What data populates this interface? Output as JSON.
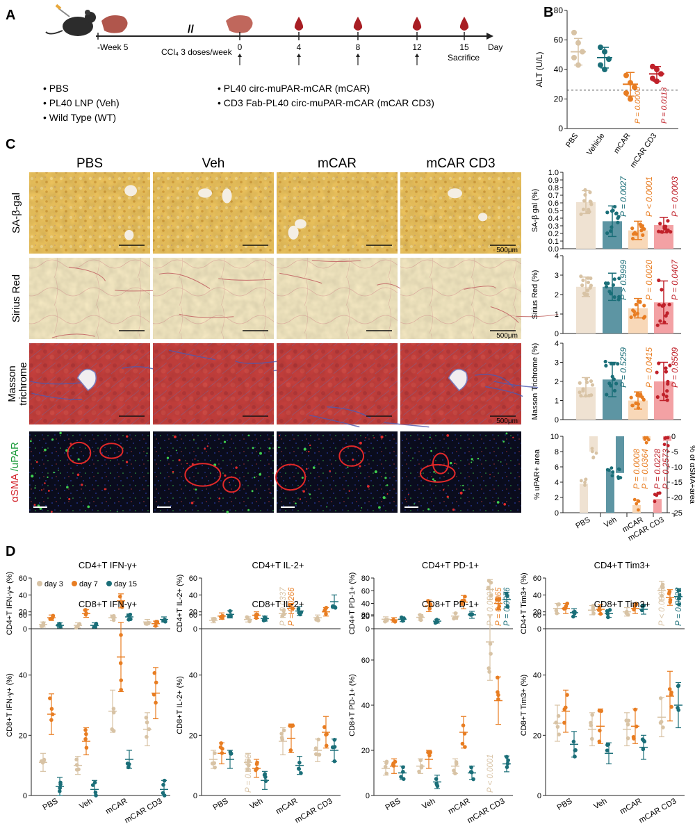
{
  "colors": {
    "tan": "#d8c3a5",
    "teal": "#1a6e78",
    "orange": "#e87d22",
    "red": "#c0212a",
    "tan_bar": "#efe2d2",
    "teal_bar": "#5d95a3",
    "orange_bar": "#f8d8b8",
    "red_bar": "#f3a1a4",
    "liver": "#a9433f",
    "blood": "#a81e24"
  },
  "panel_letters": {
    "a": "A",
    "b": "B",
    "c": "C",
    "d": "D"
  },
  "timeline": {
    "week": "-Week 5",
    "ccl4": "CCl₄ 3 doses/week",
    "ticks": [
      "0",
      "4",
      "8",
      "12",
      "15"
    ],
    "day": "Day",
    "sacrifice": "Sacrifice"
  },
  "legend_groups": {
    "left": [
      "• PBS",
      "• PL40 LNP (Veh)",
      "• Wild Type (WT)"
    ],
    "right": [
      "• PL40 circ-muPAR-mCAR (mCAR)",
      "• CD3 Fab-PL40 circ-muPAR-mCAR (mCAR CD3)"
    ]
  },
  "panel_c": {
    "columns": [
      "PBS",
      "Veh",
      "mCAR",
      "mCAR CD3"
    ],
    "rows": [
      "SA-β-gal",
      "Sirius Red",
      "Masson trichrome",
      "αSMA /uPAR"
    ],
    "scale": "500μm"
  },
  "chart_data": [
    {
      "id": "alt",
      "type": "scatter",
      "ylabel": "ALT (U/L)",
      "ylim": [
        0,
        80
      ],
      "yticks": [
        "0",
        "20",
        "40",
        "60",
        "80"
      ],
      "categories": [
        "PBS",
        "Vehicle",
        "mCAR",
        "mCAR CD3"
      ],
      "means": [
        52,
        48,
        30,
        37
      ],
      "sd": [
        9,
        7,
        8,
        5
      ],
      "points": [
        [
          65,
          58,
          52,
          48,
          43
        ],
        [
          55,
          52,
          47,
          43,
          40
        ],
        [
          36,
          31,
          28,
          24,
          20
        ],
        [
          42,
          40,
          37,
          34,
          32
        ]
      ],
      "reference_line": 26,
      "pvalues": [
        "",
        "",
        "P = 0.0006",
        "P = 0.0113"
      ]
    },
    {
      "id": "sabgal",
      "type": "bar",
      "ylabel": "SA-β gal (%)",
      "ylim": [
        0,
        1.0
      ],
      "yticks": [
        "0.0",
        "0.1",
        "0.2",
        "0.3",
        "0.4",
        "0.5",
        "0.6",
        "0.7",
        "0.8",
        "0.9",
        "1.0"
      ],
      "categories": [
        "PBS",
        "Veh",
        "mCAR",
        "mCAR CD3"
      ],
      "values": [
        0.61,
        0.36,
        0.24,
        0.31
      ],
      "sd": [
        0.15,
        0.2,
        0.12,
        0.1
      ],
      "pvalues": [
        "",
        "P = 0.0027",
        "P < 0.0001",
        "P = 0.0003"
      ]
    },
    {
      "id": "sirius",
      "type": "bar",
      "ylabel": "Sirius Red (%)",
      "ylim": [
        0,
        4
      ],
      "yticks": [
        "0",
        "1",
        "2",
        "3",
        "4"
      ],
      "categories": [
        "PBS",
        "Veh",
        "mCAR",
        "mCAR CD3"
      ],
      "values": [
        2.4,
        2.4,
        1.3,
        1.6
      ],
      "sd": [
        0.5,
        0.7,
        0.5,
        1.1
      ],
      "pvalues": [
        "",
        "P > 0.9999",
        "P = 0.0020",
        "P = 0.0407"
      ]
    },
    {
      "id": "masson",
      "type": "bar",
      "ylabel": "Masson Trichrome (%)",
      "ylim": [
        0,
        4
      ],
      "yticks": [
        "0",
        "1",
        "2",
        "3",
        "4"
      ],
      "categories": [
        "PBS",
        "Veh",
        "mCAR",
        "mCAR CD3"
      ],
      "values": [
        1.7,
        2.1,
        1.0,
        2.0
      ],
      "sd": [
        0.5,
        0.9,
        0.45,
        1.0
      ],
      "pvalues": [
        "",
        "P = 0.5259",
        "P = 0.0415",
        "P = 0.8509"
      ]
    },
    {
      "id": "upar",
      "type": "bar",
      "ylabel": "% uPAR+ area",
      "ylim": [
        0,
        10
      ],
      "yticks": [
        "0",
        "2",
        "4",
        "6",
        "8",
        "10"
      ],
      "ylabel2": "% of αSMA+area",
      "ylim2": [
        0,
        -25
      ],
      "yticks2": [
        "0",
        "-5",
        "-10",
        "-15",
        "-20",
        "-25"
      ],
      "categories": [
        "PBS",
        "Veh",
        "mCAR",
        "mCAR CD3"
      ],
      "upar_values": [
        3.8,
        5.5,
        1.0,
        1.8
      ],
      "asma_values": [
        -5.0,
        -12.0,
        -1.0,
        -1.5
      ],
      "pvalues": [
        "",
        "",
        "P = 0.0008",
        "P = 0.0228"
      ],
      "pvalues2": [
        "",
        "",
        "P = 0.0364",
        "P = 0.2573"
      ]
    },
    {
      "id": "cd4_ifng",
      "type": "scatter",
      "title": "CD4+T IFN-γ+",
      "ylabel": "CD4+T IFN-γ+ (%)",
      "ylim": [
        0,
        60
      ],
      "yticks": [
        "0",
        "20",
        "40",
        "60"
      ],
      "series": [
        {
          "name": "day 3"
        },
        {
          "name": "day 7"
        },
        {
          "name": "day 15"
        }
      ],
      "means": [
        [
          5,
          13,
          4
        ],
        [
          4,
          18,
          4
        ],
        [
          13,
          33,
          14
        ],
        [
          8,
          6,
          11
        ]
      ],
      "pvalues": []
    },
    {
      "id": "cd4_il2",
      "type": "scatter",
      "title": "CD4+T IL-2+",
      "ylabel": "CD4+T IL-2+ (%)",
      "ylim": [
        0,
        60
      ],
      "yticks": [
        "0",
        "20",
        "40",
        "60"
      ],
      "means": [
        [
          10,
          15,
          17
        ],
        [
          11,
          16,
          12
        ],
        [
          18,
          24,
          21
        ],
        [
          13,
          20,
          32
        ]
      ],
      "pvalues": [
        {
          "group": 2,
          "series": 0,
          "text": "P = 0.0337"
        },
        {
          "group": 2,
          "series": 1,
          "text": "P = 0.0266"
        }
      ]
    },
    {
      "id": "cd4_pd1",
      "type": "scatter",
      "title": "CD4+T PD-1+",
      "ylabel": "CD4+T PD-1+ (%)",
      "ylim": [
        0,
        80
      ],
      "yticks": [
        "0",
        "20",
        "40",
        "60",
        "80"
      ],
      "means": [
        [
          15,
          14,
          15
        ],
        [
          18,
          36,
          12
        ],
        [
          20,
          42,
          22
        ],
        [
          62,
          40,
          46
        ]
      ],
      "pvalues": [
        {
          "group": 3,
          "series": 0,
          "text": "P < 0.0001"
        },
        {
          "group": 3,
          "series": 1,
          "text": "P = 0.0065"
        },
        {
          "group": 3,
          "series": 2,
          "text": "P = 0.0076"
        }
      ]
    },
    {
      "id": "cd4_tim3",
      "type": "scatter",
      "title": "CD4+T Tim3+",
      "ylabel": "CD4+T Tim3+ (%)",
      "ylim": [
        0,
        60
      ],
      "yticks": [
        "0",
        "20",
        "40",
        "60"
      ],
      "means": [
        [
          24,
          24,
          19
        ],
        [
          22,
          23,
          18
        ],
        [
          20,
          24,
          23
        ],
        [
          45,
          37,
          38
        ]
      ],
      "pvalues": [
        {
          "group": 3,
          "series": 0,
          "text": "P < 0.0003"
        },
        {
          "group": 3,
          "series": 2,
          "text": "P = 0.0022"
        }
      ]
    },
    {
      "id": "cd8_ifng",
      "type": "scatter",
      "title": "CD8+T IFN-γ+",
      "ylabel": "CD8+T IFN-γ+ (%)",
      "ylim": [
        0,
        60
      ],
      "yticks": [
        "0",
        "20",
        "40",
        "60"
      ],
      "means": [
        [
          11,
          27,
          3
        ],
        [
          10,
          18,
          2
        ],
        [
          28,
          46,
          12
        ],
        [
          22,
          34,
          2
        ]
      ],
      "pvalues": []
    },
    {
      "id": "cd8_il2",
      "type": "scatter",
      "title": "CD8+T IL-2+",
      "ylabel": "CD8+T IL-2+ (%)",
      "ylim": [
        0,
        60
      ],
      "yticks": [
        "0",
        "20",
        "40",
        "60"
      ],
      "means": [
        [
          12,
          14,
          12
        ],
        [
          11,
          9,
          5
        ],
        [
          18,
          19,
          10
        ],
        [
          15,
          21,
          15
        ]
      ],
      "pvalues": [
        {
          "group": 1,
          "series": 0,
          "text": "P = 0.0438"
        }
      ]
    },
    {
      "id": "cd8_pd1",
      "type": "scatter",
      "title": "CD8+T PD-1+",
      "ylabel": "CD8+T PD-1+ (%)",
      "ylim": [
        0,
        80
      ],
      "yticks": [
        "0",
        "20",
        "40",
        "60",
        "80"
      ],
      "means": [
        [
          12,
          13,
          10
        ],
        [
          13,
          16,
          6
        ],
        [
          13,
          28,
          10
        ],
        [
          68,
          42,
          14
        ]
      ],
      "pvalues": [
        {
          "group": 3,
          "series": 0,
          "text": "P < 0.0001"
        }
      ]
    },
    {
      "id": "cd8_tim3",
      "type": "scatter",
      "title": "CD8+T Tim3+",
      "ylabel": "CD8+T Tim3+ (%)",
      "ylim": [
        0,
        60
      ],
      "yticks": [
        "0",
        "20",
        "40",
        "60"
      ],
      "means": [
        [
          24,
          28,
          17
        ],
        [
          22,
          23,
          14
        ],
        [
          22,
          23,
          16
        ],
        [
          26,
          33,
          30
        ]
      ],
      "pvalues": []
    }
  ],
  "panel_d_categories": [
    "PBS",
    "Veh",
    "mCAR",
    "mCAR CD3"
  ],
  "panel_d_legend": [
    "day 3",
    "day 7",
    "day 15"
  ]
}
